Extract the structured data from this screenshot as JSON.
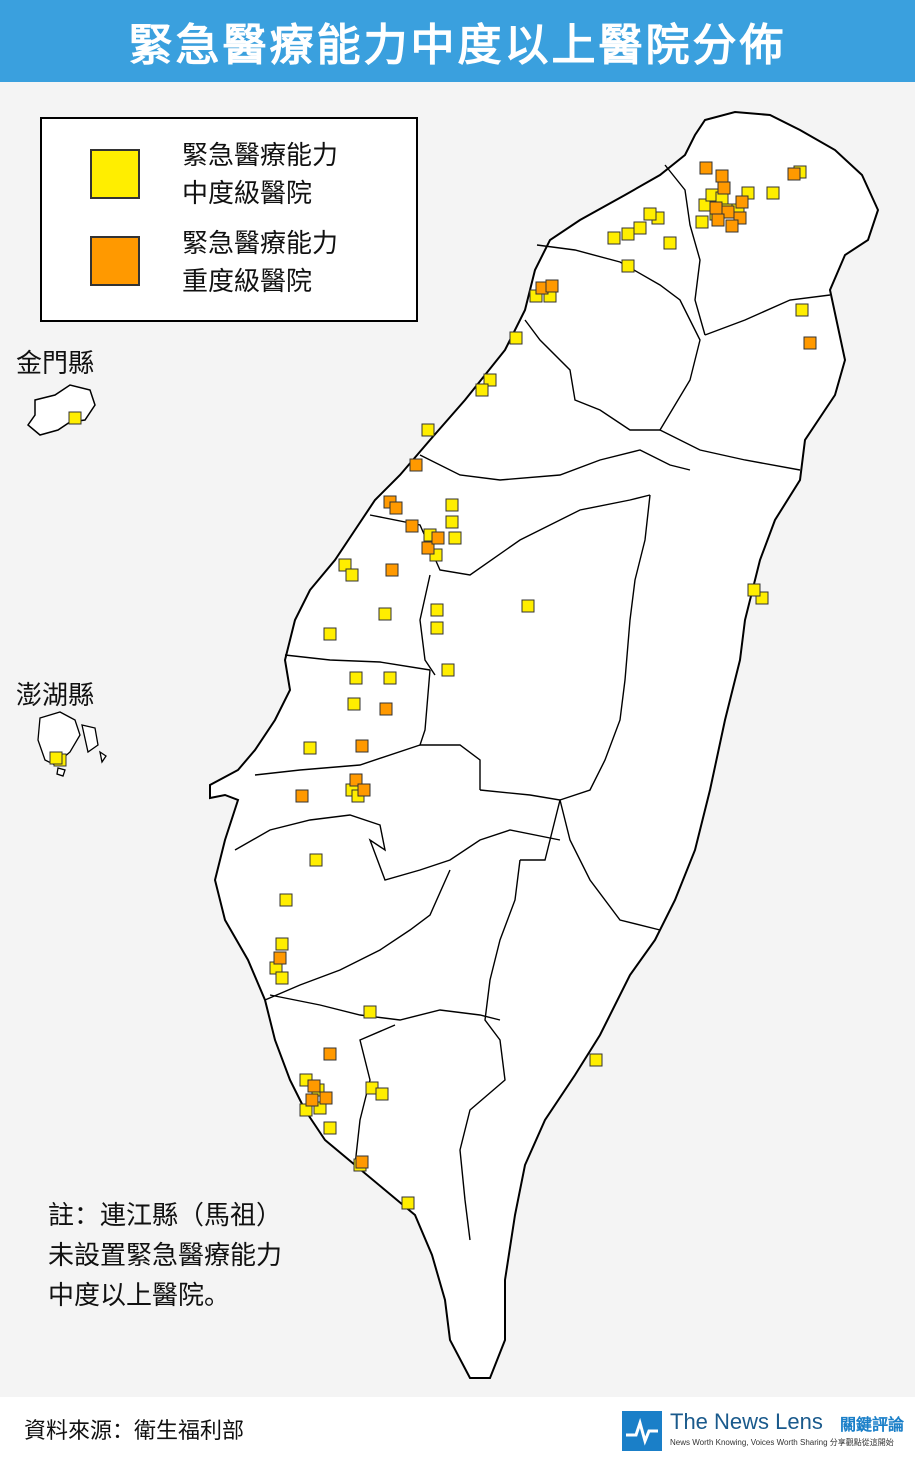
{
  "title": "緊急醫療能力中度以上醫院分佈",
  "legend": {
    "moderate_label": "緊急醫療能力\n中度級醫院",
    "severe_label": "緊急醫療能力\n重度級醫院",
    "moderate_color": "#ffee00",
    "severe_color": "#ff9900"
  },
  "islands": {
    "kinmen_label": "金門縣",
    "penghu_label": "澎湖縣"
  },
  "note": "註：連江縣（馬祖）\n未設置緊急醫療能力\n中度以上醫院。",
  "footer": {
    "source": "資料來源：衛生福利部",
    "brand_name": "The News Lens",
    "brand_zh": "關鍵評論",
    "brand_slogan": "News Worth Knowing, Voices Worth Sharing  分享觀點從這開始"
  }
}
